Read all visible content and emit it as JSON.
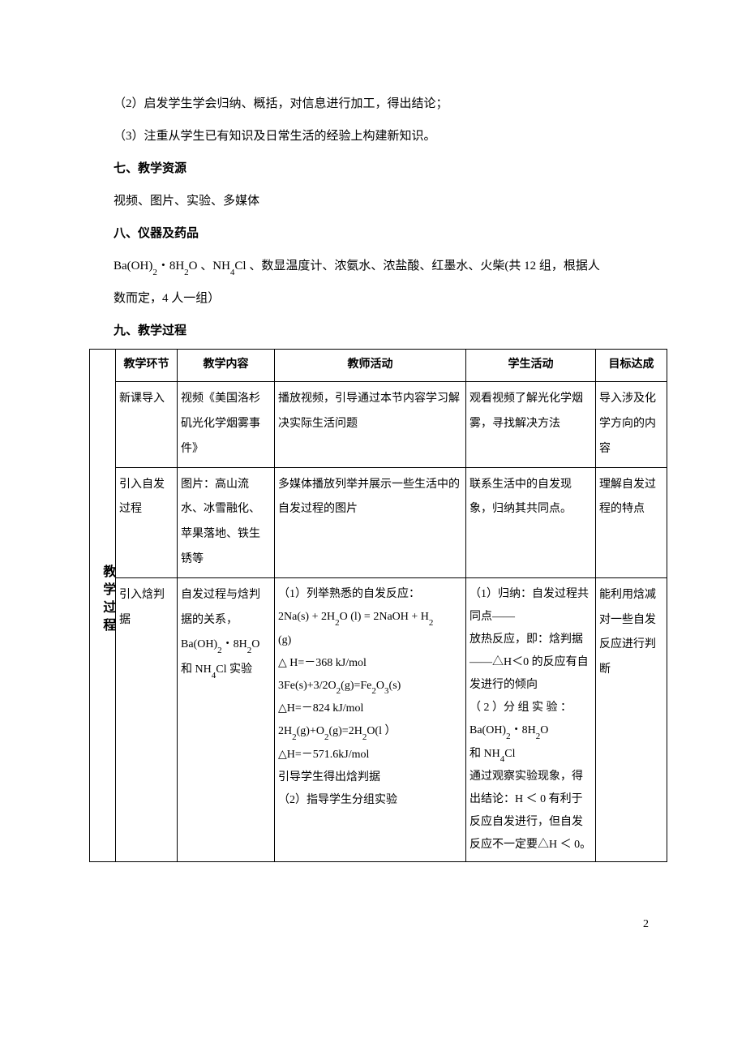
{
  "intro": {
    "item2": "（2）启发学生学会归纳、概括，对信息进行加工，得出结论；",
    "item3": "（3）注重从学生已有知识及日常生活的经验上构建新知识。"
  },
  "section7": {
    "title": "七、教学资源",
    "body": "视频、图片、实验、多媒体"
  },
  "section8": {
    "title": "八、仪器及药品",
    "body_a": "Ba(OH)",
    "body_b": "・8H",
    "body_c": "O 、NH",
    "body_d": "Cl 、数显温度计、浓氨水、浓盐酸、红墨水、火柴(共 12 组，根据人",
    "body_e": "数而定，4 人一组）"
  },
  "section9": {
    "title": "九、教学过程"
  },
  "table": {
    "side": "教学过程",
    "headers": [
      "教学环节",
      "教学内容",
      "教师活动",
      "学生活动",
      "目标达成"
    ],
    "rows": [
      {
        "c1": "新课导入",
        "c2": "视频《美国洛杉矶光化学烟雾事件》",
        "c3": "播放视频，引导通过本节内容学习解决实际生活问题",
        "c4": "观看视频了解光化学烟雾，寻找解决方法",
        "c5": "导入涉及化学方向的内容"
      },
      {
        "c1": "引入自发过程",
        "c2": "图片：高山流水、冰雪融化、苹果落地、铁生锈等",
        "c3": "多媒体播放列举并展示一些生活中的自发过程的图片",
        "c4": "联系生活中的自发现象，归纳其共同点。",
        "c5": "理解自发过程的特点"
      },
      {
        "c1": "引入焓判据",
        "c2_a": "自发过程与焓判据的关系，",
        "c2_b": "Ba(OH)",
        "c2_c": "・8H",
        "c2_d": "O",
        "c2_e": "和 NH",
        "c2_f": "Cl 实验",
        "c3_1": "（1）列举熟悉的自发反应：",
        "c3_2a": "2Na(s) + 2H",
        "c3_2b": "O (l) = 2NaOH + H",
        "c3_3": "(g)",
        "c3_4": "△ H=－368 kJ/mol",
        "c3_5a": "3Fe(s)+3/2O",
        "c3_5b": "(g)=Fe",
        "c3_5c": "O",
        "c3_5d": "(s)",
        "c3_6": "△H=－824 kJ/mol",
        "c3_7a": "2H",
        "c3_7b": "(g)+O",
        "c3_7c": "(g)=2H",
        "c3_7d": "O(l ）",
        "c3_8": "△H=－571.6kJ/mol",
        "c3_9": "引导学生得出焓判据",
        "c3_10": "（2）指导学生分组实验",
        "c4_1": "（1）归纳：自发过程共同点——",
        "c4_2": "放热反应，即：焓判据——△H＜0 的反应有自发进行的倾向",
        "c4_3": "（ 2 ）分 组 实 验 ：",
        "c4_4a": "Ba(OH)",
        "c4_4b": "・8H",
        "c4_4c": "O",
        "c4_5a": "和 NH",
        "c4_5b": "Cl",
        "c4_6": "通过观察实验现象，得出结论：H ＜ 0 有利于反应自发进行，但自发反应不一定要△H ＜ 0。",
        "c5": "能利用焓减对一些自发反应进行判断"
      }
    ]
  },
  "pageNum": "2"
}
